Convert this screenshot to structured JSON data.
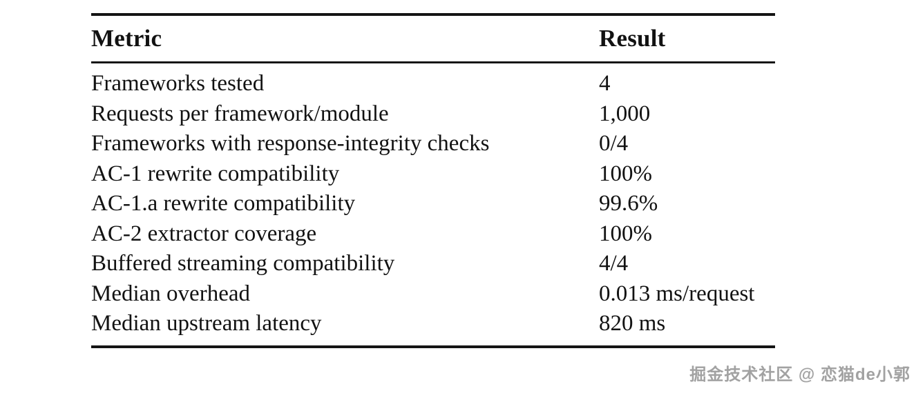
{
  "table": {
    "headers": {
      "metric": "Metric",
      "result": "Result"
    },
    "rows": [
      {
        "metric": "Frameworks tested",
        "result": "4"
      },
      {
        "metric": "Requests per framework/module",
        "result": "1,000"
      },
      {
        "metric": "Frameworks with response-integrity checks",
        "result": "0/4"
      },
      {
        "metric": "AC-1 rewrite compatibility",
        "result": "100%"
      },
      {
        "metric": "AC-1.a rewrite compatibility",
        "result": "99.6%"
      },
      {
        "metric": "AC-2 extractor coverage",
        "result": "100%"
      },
      {
        "metric": "Buffered streaming compatibility",
        "result": "4/4"
      },
      {
        "metric": "Median overhead",
        "result": "0.013 ms/request"
      },
      {
        "metric": "Median upstream latency",
        "result": "820 ms"
      }
    ]
  },
  "watermark": {
    "text": "掘金技术社区 @ 恋猫de小郭"
  },
  "colors": {
    "rule": "#141414",
    "text": "#121212",
    "watermark": "#a2a2a2",
    "background": "#ffffff"
  }
}
